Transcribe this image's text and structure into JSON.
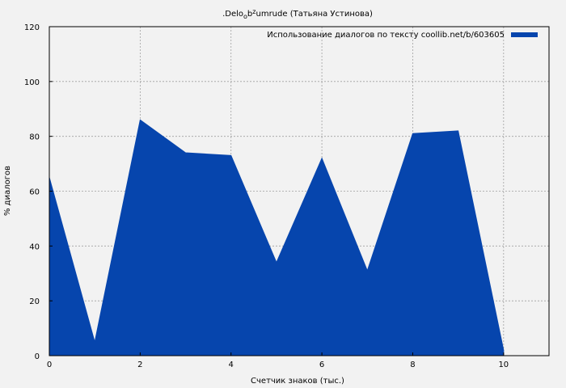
{
  "chart_data": {
    "type": "area",
    "title": {
      "prefix": ".Delo",
      "sub": "o",
      "mid": "b",
      "sup": "z",
      "suffix": "umrude (Татьяна Устинова)"
    },
    "xlabel": "Счетчик знаков (тыс.)",
    "ylabel": "% диалогов",
    "xlim": [
      0,
      11
    ],
    "ylim": [
      0,
      120
    ],
    "xticks": [
      0,
      2,
      4,
      6,
      8,
      10
    ],
    "yticks": [
      0,
      20,
      40,
      60,
      80,
      100,
      120
    ],
    "grid": true,
    "legend_position": "top-right",
    "series": [
      {
        "name": "Использование диалогов по тексту coollib.net/b/603605",
        "color": "#0645ad",
        "x": [
          0,
          1,
          2,
          3,
          4,
          5,
          6,
          7,
          8,
          9,
          10
        ],
        "y": [
          65,
          5,
          86,
          74,
          73,
          34,
          72,
          31,
          81,
          82,
          2
        ]
      }
    ]
  }
}
